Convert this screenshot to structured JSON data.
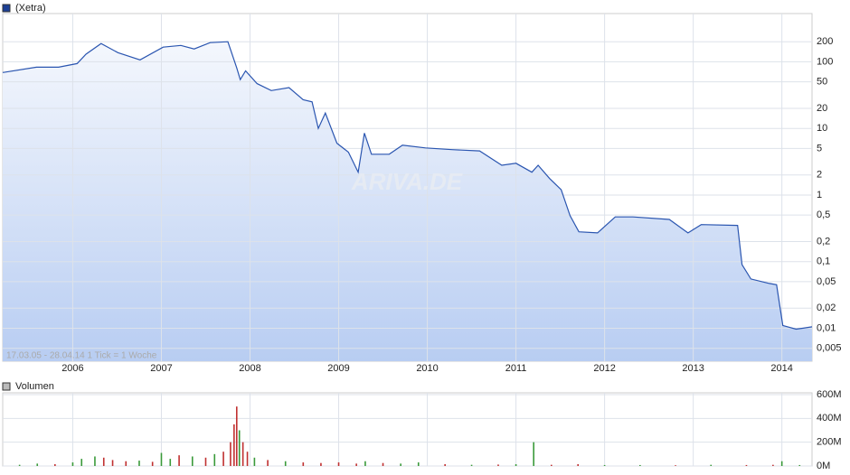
{
  "chart_data": [
    {
      "type": "line",
      "legend": "(Xetra)",
      "note": "17.03.05 - 28.04.14   1 Tick = 1 Woche",
      "watermark": "ARIVA.DE",
      "log_scale": true,
      "grid": true,
      "series": [
        {
          "name": "(Xetra)",
          "color": "#2a55b0",
          "x": [
            2005.21,
            2005.59,
            2005.84,
            2006.05,
            2006.15,
            2006.32,
            2006.51,
            2006.76,
            2007.02,
            2007.22,
            2007.37,
            2007.55,
            2007.75,
            2007.85,
            2007.89,
            2007.95,
            2008.08,
            2008.24,
            2008.44,
            2008.6,
            2008.7,
            2008.77,
            2008.85,
            2008.98,
            2009.11,
            2009.22,
            2009.29,
            2009.37,
            2009.57,
            2009.72,
            2009.98,
            2010.28,
            2010.59,
            2010.84,
            2011.0,
            2011.18,
            2011.25,
            2011.38,
            2011.51,
            2011.61,
            2011.71,
            2011.92,
            2012.12,
            2012.32,
            2012.73,
            2012.94,
            2013.09,
            2013.5,
            2013.55,
            2013.65,
            2013.86,
            2013.94,
            2014.01,
            2014.16,
            2014.34
          ],
          "values": [
            69,
            83,
            83,
            94,
            130,
            188,
            137,
            107,
            166,
            176,
            156,
            194,
            200,
            81,
            54,
            73,
            47,
            37,
            41,
            27,
            25,
            10,
            17,
            6.0,
            4.4,
            2.2,
            8.5,
            4.1,
            4.1,
            5.6,
            5.1,
            4.8,
            4.6,
            2.8,
            3.0,
            2.2,
            2.8,
            1.77,
            1.2,
            0.49,
            0.28,
            0.27,
            0.47,
            0.47,
            0.43,
            0.27,
            0.36,
            0.35,
            0.09,
            0.055,
            0.047,
            0.045,
            0.011,
            0.0097,
            0.0105
          ]
        }
      ],
      "xlim": [
        2005.21,
        2014.34
      ],
      "xticks": [
        2006,
        2007,
        2008,
        2009,
        2010,
        2011,
        2012,
        2013,
        2014
      ],
      "ylim": [
        0.0032,
        530
      ],
      "yticks": [
        {
          "value": 0.005,
          "label": "0,005"
        },
        {
          "value": 0.01,
          "label": "0,01"
        },
        {
          "value": 0.02,
          "label": "0,02"
        },
        {
          "value": 0.05,
          "label": "0,05"
        },
        {
          "value": 0.1,
          "label": "0,1"
        },
        {
          "value": 0.2,
          "label": "0,2"
        },
        {
          "value": 0.5,
          "label": "0,5"
        },
        1,
        2,
        5,
        10,
        20,
        50,
        100,
        200
      ]
    },
    {
      "type": "bar",
      "legend": "Volumen",
      "grid": true,
      "series": [
        {
          "name": "Volumen",
          "color": "#999999",
          "x": [
            2005.4,
            2005.6,
            2005.8,
            2006.0,
            2006.1,
            2006.25,
            2006.35,
            2006.45,
            2006.6,
            2006.75,
            2006.9,
            2007.0,
            2007.1,
            2007.2,
            2007.35,
            2007.5,
            2007.6,
            2007.7,
            2007.78,
            2007.82,
            2007.85,
            2007.88,
            2007.92,
            2007.97,
            2008.05,
            2008.2,
            2008.4,
            2008.6,
            2008.8,
            2009.0,
            2009.2,
            2009.3,
            2009.5,
            2009.7,
            2009.9,
            2010.2,
            2010.5,
            2010.8,
            2011.0,
            2011.2,
            2011.4,
            2011.7,
            2012.0,
            2012.4,
            2012.8,
            2013.2,
            2013.6,
            2013.9,
            2014.0,
            2014.2
          ],
          "values": [
            10000000,
            20000000,
            15000000,
            30000000,
            60000000,
            80000000,
            70000000,
            50000000,
            40000000,
            45000000,
            35000000,
            110000000,
            60000000,
            90000000,
            80000000,
            70000000,
            100000000,
            120000000,
            200000000,
            350000000,
            500000000,
            300000000,
            200000000,
            120000000,
            70000000,
            50000000,
            40000000,
            30000000,
            25000000,
            30000000,
            20000000,
            40000000,
            25000000,
            20000000,
            30000000,
            15000000,
            10000000,
            12000000,
            15000000,
            200000000,
            10000000,
            15000000,
            8000000,
            8000000,
            6000000,
            10000000,
            8000000,
            10000000,
            40000000,
            8000000
          ],
          "colors": [
            "#3a9a3a",
            "#3a9a3a",
            "#c03030",
            "#3a9a3a",
            "#3a9a3a",
            "#3a9a3a",
            "#c03030",
            "#c03030",
            "#c03030",
            "#3a9a3a",
            "#c03030",
            "#3a9a3a",
            "#3a9a3a",
            "#c03030",
            "#3a9a3a",
            "#c03030",
            "#3a9a3a",
            "#c03030",
            "#c03030",
            "#c03030",
            "#c03030",
            "#3a9a3a",
            "#c03030",
            "#c03030",
            "#3a9a3a",
            "#c03030",
            "#3a9a3a",
            "#c03030",
            "#c03030",
            "#c03030",
            "#c03030",
            "#3a9a3a",
            "#c03030",
            "#3a9a3a",
            "#3a9a3a",
            "#c03030",
            "#3a9a3a",
            "#c03030",
            "#3a9a3a",
            "#3a9a3a",
            "#c03030",
            "#c03030",
            "#3a9a3a",
            "#3a9a3a",
            "#c03030",
            "#3a9a3a",
            "#c03030",
            "#c03030",
            "#3a9a3a",
            "#3a9a3a"
          ]
        }
      ],
      "ylim": [
        0,
        600000000
      ],
      "yticks": [
        {
          "value": 0,
          "label": "0M"
        },
        {
          "value": 200000000,
          "label": "200M"
        },
        {
          "value": 400000000,
          "label": "400M"
        },
        {
          "value": 600000000,
          "label": "600M"
        }
      ]
    }
  ]
}
